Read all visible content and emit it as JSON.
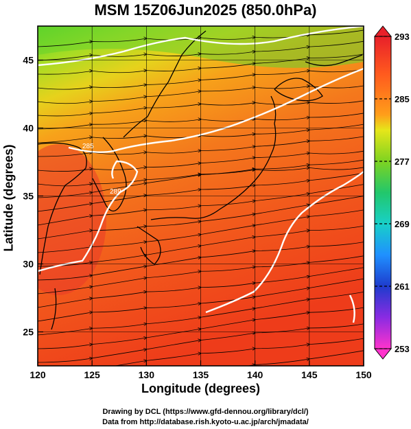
{
  "title": "MSM 15Z06Jun2025 (850.0hPa)",
  "footer": {
    "line1": "Drawing by DCL (https://www.gfd-dennou.org/library/dcl/)",
    "line2": "Data from http://database.rish.kyoto-u.ac.jp/arch/jmadata/"
  },
  "axes": {
    "xlabel": "Longitude (degrees)",
    "ylabel": "Latitude  (degrees)",
    "x_ticks": [
      120,
      125,
      130,
      135,
      140,
      145,
      150
    ],
    "y_ticks": [
      25,
      30,
      35,
      40,
      45
    ],
    "xlim": [
      120,
      150
    ],
    "ylim": [
      22.5,
      47.5
    ]
  },
  "colorbar": {
    "min": 253,
    "max": 293,
    "tick_labels": [
      293,
      285,
      277,
      269,
      261,
      253
    ],
    "colors": [
      "#ff33cc",
      "#8a2be2",
      "#1e3ccd",
      "#1f90ff",
      "#18d0c8",
      "#22c76b",
      "#7ed321",
      "#e6e61a",
      "#ff9d1a",
      "#ff5a1e",
      "#e8202a"
    ]
  },
  "contours": [
    {
      "label": "285",
      "color": "#ffffff"
    },
    {
      "label": "289",
      "color": "#ffffff"
    }
  ],
  "map": {
    "field": "temperature",
    "units": "K",
    "overlay": "wind streamlines",
    "coastline_color": "#000000"
  }
}
